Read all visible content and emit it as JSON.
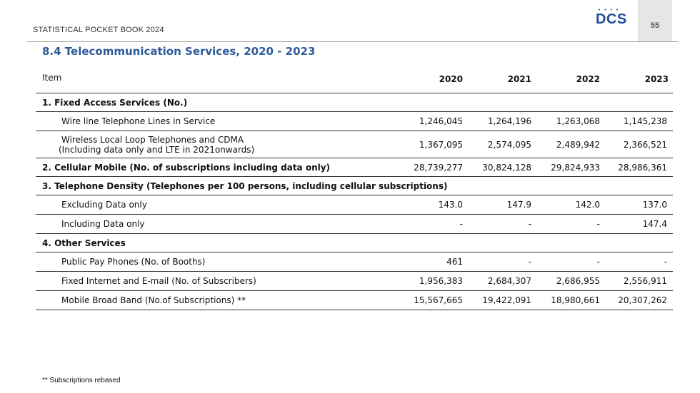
{
  "header": {
    "book_title": "STATISTICAL POCKET BOOK 2024",
    "logo_text": "DCS",
    "page_number": "55"
  },
  "section_title": "8.4 Telecommunication Services, 2020 - 2023",
  "table": {
    "columns": [
      "Item",
      "2020",
      "2021",
      "2022",
      "2023"
    ],
    "rows": {
      "fixed_header": "1. Fixed  Access Services (No.)",
      "wire_line": {
        "label": "Wire line Telephone Lines in Service",
        "values": [
          "1,246,045",
          "1,264,196",
          "1,263,068",
          "1,145,238"
        ]
      },
      "wireless": {
        "label_line1": "Wireless Local Loop Telephones and CDMA",
        "label_line2": "(Including data only and LTE in 2021onwards)",
        "values": [
          "1,367,095",
          "2,574,095",
          "2,489,942",
          "2,366,521"
        ]
      },
      "cellular": {
        "label": "2. Cellular Mobile  (No. of subscriptions including data only)",
        "values": [
          "28,739,277",
          "30,824,128",
          "29,824,933",
          "28,986,361"
        ]
      },
      "density_header": "3. Telephone  Density (Telephones per 100 persons, including cellular subscriptions)",
      "excluding": {
        "label": "Excluding Data only",
        "values": [
          "143.0",
          "147.9",
          "142.0",
          "137.0"
        ]
      },
      "including": {
        "label": "Including Data only",
        "values": [
          "-",
          "-",
          "-",
          "147.4"
        ]
      },
      "other_header": "4. Other Services",
      "payphones": {
        "label": "Public Pay Phones (No. of Booths)",
        "values": [
          "461",
          "-",
          "-",
          "-"
        ]
      },
      "internet": {
        "label": "Fixed  Internet and E-mail (No. of Subscribers)",
        "values": [
          "1,956,383",
          "2,684,307",
          "2,686,955",
          "2,556,911"
        ]
      },
      "broadband": {
        "label": "Mobile Broad Band (No.of Subscriptions) **",
        "values": [
          "15,567,665",
          "19,422,091",
          "18,980,661",
          "20,307,262"
        ]
      }
    }
  },
  "footnote": "** Subscriptions rebased"
}
